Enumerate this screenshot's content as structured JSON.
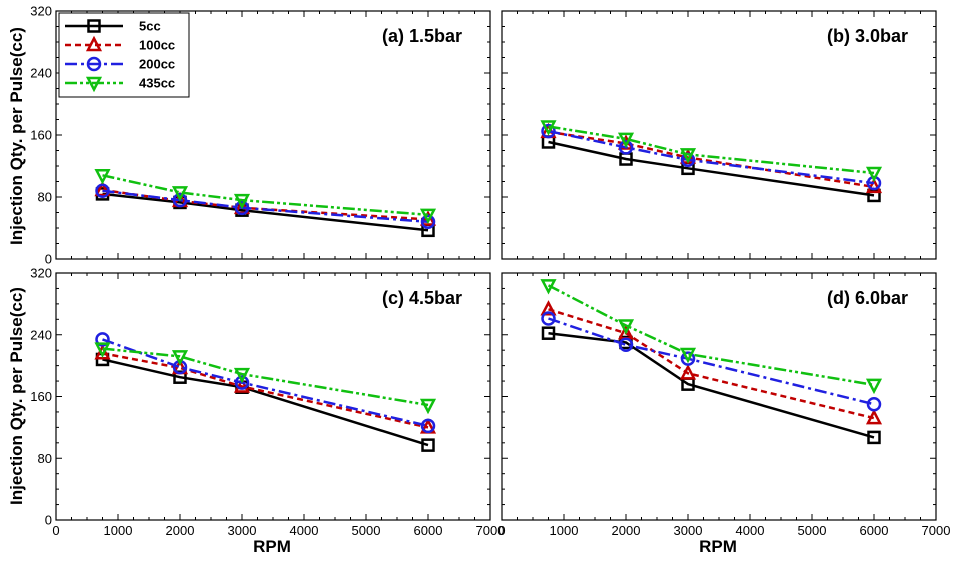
{
  "figure": {
    "ylabel": "Injection Qty. per Pulse(cc)",
    "xlabel": "RPM"
  },
  "legend": [
    {
      "name": "5cc",
      "color": "#000000",
      "dash": "solid",
      "marker": "square"
    },
    {
      "name": "100cc",
      "color": "#c00000",
      "dash": "dash",
      "marker": "triangle-up"
    },
    {
      "name": "200cc",
      "color": "#2020e0",
      "dash": "dashdot",
      "marker": "circle"
    },
    {
      "name": "435cc",
      "color": "#10c010",
      "dash": "dashdotdot",
      "marker": "triangle-down"
    }
  ],
  "chart_data": [
    {
      "type": "line",
      "title": "(a) 1.5bar",
      "x": [
        750,
        2000,
        3000,
        6000
      ],
      "xlim": [
        0,
        7000
      ],
      "ylim": [
        0,
        320
      ],
      "xticks": [
        0,
        1000,
        2000,
        3000,
        4000,
        5000,
        6000,
        7000
      ],
      "yticks": [
        0,
        80,
        160,
        240,
        320
      ],
      "series": [
        {
          "name": "5cc",
          "values": [
            84,
            73,
            63,
            37
          ]
        },
        {
          "name": "100cc",
          "values": [
            89,
            75,
            66,
            51
          ]
        },
        {
          "name": "200cc",
          "values": [
            88,
            76,
            66,
            48
          ]
        },
        {
          "name": "435cc",
          "values": [
            108,
            86,
            76,
            57
          ]
        }
      ]
    },
    {
      "type": "line",
      "title": "(b) 3.0bar",
      "x": [
        750,
        2000,
        3000,
        6000
      ],
      "xlim": [
        0,
        7000
      ],
      "ylim": [
        0,
        320
      ],
      "xticks": [
        0,
        1000,
        2000,
        3000,
        4000,
        5000,
        6000,
        7000
      ],
      "yticks": [
        0,
        80,
        160,
        240,
        320
      ],
      "series": [
        {
          "name": "5cc",
          "values": [
            151,
            129,
            117,
            82
          ]
        },
        {
          "name": "100cc",
          "values": [
            164,
            149,
            131,
            93
          ]
        },
        {
          "name": "200cc",
          "values": [
            165,
            144,
            128,
            98
          ]
        },
        {
          "name": "435cc",
          "values": [
            171,
            155,
            135,
            111
          ]
        }
      ]
    },
    {
      "type": "line",
      "title": "(c) 4.5bar",
      "x": [
        750,
        2000,
        3000,
        6000
      ],
      "xlim": [
        0,
        7000
      ],
      "ylim": [
        0,
        320
      ],
      "xticks": [
        0,
        1000,
        2000,
        3000,
        4000,
        5000,
        6000,
        7000
      ],
      "yticks": [
        0,
        80,
        160,
        240,
        320
      ],
      "series": [
        {
          "name": "5cc",
          "values": [
            208,
            185,
            172,
            97
          ]
        },
        {
          "name": "100cc",
          "values": [
            216,
            197,
            173,
            120
          ]
        },
        {
          "name": "200cc",
          "values": [
            234,
            198,
            178,
            122
          ]
        },
        {
          "name": "435cc",
          "values": [
            222,
            212,
            189,
            149
          ]
        }
      ]
    },
    {
      "type": "line",
      "title": "(d) 6.0bar",
      "x": [
        750,
        2000,
        3000,
        6000
      ],
      "xlim": [
        0,
        7000
      ],
      "ylim": [
        0,
        320
      ],
      "xticks": [
        0,
        1000,
        2000,
        3000,
        4000,
        5000,
        6000,
        7000
      ],
      "yticks": [
        0,
        80,
        160,
        240,
        320
      ],
      "series": [
        {
          "name": "5cc",
          "values": [
            242,
            230,
            176,
            107
          ]
        },
        {
          "name": "100cc",
          "values": [
            273,
            242,
            190,
            132
          ]
        },
        {
          "name": "200cc",
          "values": [
            261,
            227,
            209,
            150
          ]
        },
        {
          "name": "435cc",
          "values": [
            304,
            252,
            215,
            175
          ]
        }
      ]
    }
  ]
}
